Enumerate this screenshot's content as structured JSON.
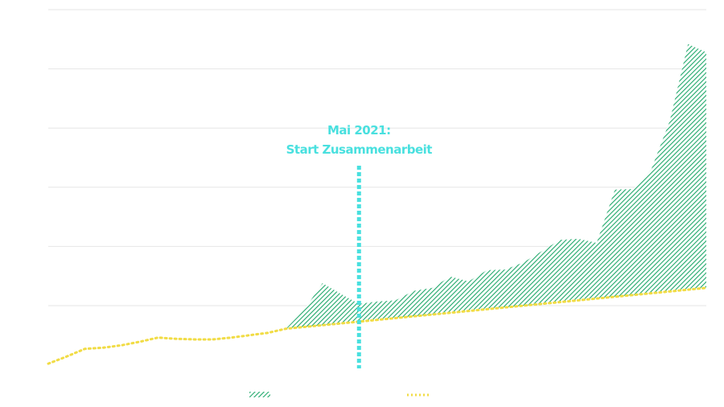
{
  "chart_data": {
    "type": "area-line",
    "x": [
      0,
      1,
      2,
      3,
      4,
      5,
      6,
      7,
      8,
      9,
      10,
      11,
      12,
      13,
      14,
      15,
      16,
      17,
      18,
      19,
      20,
      21,
      22,
      23,
      24,
      25,
      26,
      27,
      28,
      29,
      30,
      31,
      32,
      33,
      34,
      35,
      36
    ],
    "xlim": [
      0,
      36
    ],
    "ylim": [
      0,
      6
    ],
    "yticks": [
      1,
      2,
      3,
      4,
      5,
      6
    ],
    "grid": true,
    "series": [
      {
        "kind": "dotted-line",
        "color": "#f1dc45",
        "values": [
          0.02,
          0.14,
          0.27,
          0.29,
          0.33,
          0.39,
          0.46,
          0.44,
          0.43,
          0.43,
          0.46,
          0.5,
          0.54,
          0.61,
          0.64,
          0.67,
          0.7,
          0.73,
          0.76,
          0.79,
          0.82,
          0.85,
          0.88,
          0.91,
          0.94,
          0.97,
          1.0,
          1.03,
          1.06,
          1.09,
          1.12,
          1.15,
          1.18,
          1.21,
          1.24,
          1.27,
          1.3
        ]
      },
      {
        "kind": "hatched-area",
        "color": "#1fa86a",
        "values": [
          null,
          null,
          null,
          null,
          null,
          null,
          null,
          null,
          null,
          null,
          null,
          null,
          null,
          0.61,
          0.93,
          1.38,
          1.2,
          1.03,
          1.07,
          1.09,
          1.25,
          1.3,
          1.49,
          1.41,
          1.6,
          1.61,
          1.73,
          1.92,
          2.11,
          2.13,
          2.06,
          2.96,
          2.97,
          3.31,
          4.12,
          5.42,
          5.28
        ]
      }
    ],
    "annotation": {
      "x": 17,
      "text": [
        "Mai 2021:",
        "Start Zusammenarbeit"
      ],
      "color": "#49e0df"
    }
  }
}
